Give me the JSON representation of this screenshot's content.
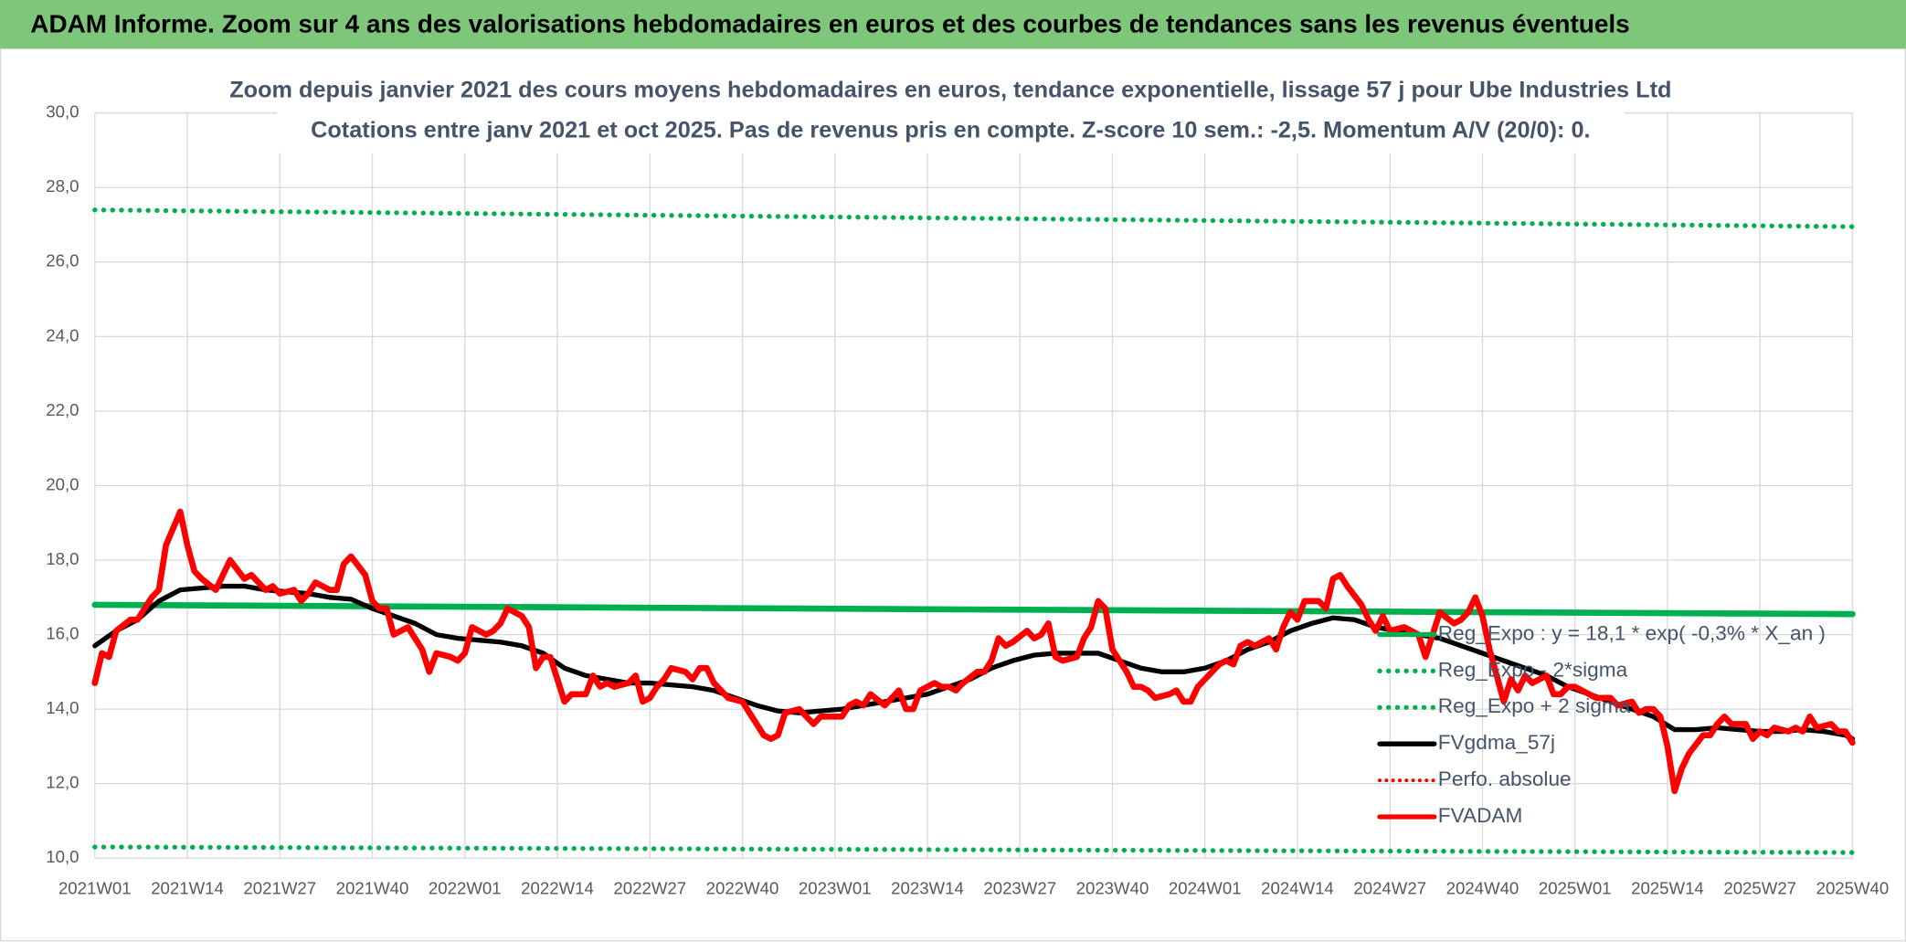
{
  "header": {
    "title": "ADAM Informe. Zoom sur 4 ans des valorisations hebdomadaires en euros et des courbes de tendances sans les revenus éventuels"
  },
  "chart_data": {
    "type": "line",
    "title": "Zoom depuis janvier 2021 des cours moyens hebdomadaires en euros, tendance exponentielle, lissage 57 j pour Ube Industries Ltd",
    "subtitle": "Cotations entre janv 2021 et oct 2025. Pas de revenus pris en compte. Z-score 10 sem.: -2,5. Momentum A/V (20/0): 0.",
    "xlim": [
      0,
      247
    ],
    "xticks": [
      {
        "value": 0,
        "label": "2021W01"
      },
      {
        "value": 13,
        "label": "2021W14"
      },
      {
        "value": 26,
        "label": "2021W27"
      },
      {
        "value": 39,
        "label": "2021W40"
      },
      {
        "value": 52,
        "label": "2022W01"
      },
      {
        "value": 65,
        "label": "2022W14"
      },
      {
        "value": 78,
        "label": "2022W27"
      },
      {
        "value": 91,
        "label": "2022W40"
      },
      {
        "value": 104,
        "label": "2023W01"
      },
      {
        "value": 117,
        "label": "2023W14"
      },
      {
        "value": 130,
        "label": "2023W27"
      },
      {
        "value": 143,
        "label": "2023W40"
      },
      {
        "value": 156,
        "label": "2024W01"
      },
      {
        "value": 169,
        "label": "2024W14"
      },
      {
        "value": 182,
        "label": "2024W27"
      },
      {
        "value": 195,
        "label": "2024W40"
      },
      {
        "value": 208,
        "label": "2025W01"
      },
      {
        "value": 221,
        "label": "2025W14"
      },
      {
        "value": 234,
        "label": "2025W27"
      },
      {
        "value": 247,
        "label": "2025W40"
      }
    ],
    "ylim": [
      10,
      30
    ],
    "yticks": [
      {
        "value": 10,
        "label": "10,0"
      },
      {
        "value": 12,
        "label": "12,0"
      },
      {
        "value": 14,
        "label": "14,0"
      },
      {
        "value": 16,
        "label": "16,0"
      },
      {
        "value": 18,
        "label": "18,0"
      },
      {
        "value": 20,
        "label": "20,0"
      },
      {
        "value": 22,
        "label": "22,0"
      },
      {
        "value": 24,
        "label": "24,0"
      },
      {
        "value": 26,
        "label": "26,0"
      },
      {
        "value": 28,
        "label": "28,0"
      },
      {
        "value": 30,
        "label": "30,0"
      }
    ],
    "grid": true,
    "legend": "lower right",
    "series": [
      {
        "name": "Reg_Expo : y = 18,1 * exp( -0,3% *  X_an )",
        "color": "#00b050",
        "style": "solid",
        "width": 5,
        "x": [
          0,
          247
        ],
        "values": [
          16.8,
          16.55
        ]
      },
      {
        "name": "Reg_Expo - 2*sigma",
        "color": "#00b050",
        "style": "dotted",
        "width": 4,
        "x": [
          0,
          247
        ],
        "values": [
          10.3,
          10.15
        ]
      },
      {
        "name": "Reg_Expo + 2 sigma",
        "color": "#00b050",
        "style": "dotted",
        "width": 4,
        "x": [
          0,
          247
        ],
        "values": [
          27.4,
          26.95
        ]
      },
      {
        "name": "FVgdma_57j",
        "color": "#000000",
        "style": "solid",
        "width": 4,
        "x": [
          0,
          3,
          6,
          9,
          12,
          15,
          18,
          21,
          24,
          27,
          30,
          33,
          36,
          39,
          42,
          45,
          48,
          51,
          54,
          57,
          60,
          63,
          66,
          69,
          72,
          75,
          78,
          81,
          84,
          87,
          90,
          93,
          96,
          99,
          102,
          105,
          108,
          111,
          114,
          117,
          120,
          123,
          126,
          129,
          132,
          135,
          138,
          141,
          144,
          147,
          150,
          153,
          156,
          159,
          162,
          165,
          168,
          171,
          174,
          177,
          180,
          183,
          186,
          189,
          192,
          195,
          198,
          201,
          204,
          207,
          210,
          213,
          216,
          219,
          222,
          225,
          228,
          231,
          234,
          237,
          240,
          243,
          246,
          247
        ],
        "values": [
          15.7,
          16.1,
          16.4,
          16.9,
          17.2,
          17.25,
          17.3,
          17.3,
          17.2,
          17.15,
          17.1,
          17.0,
          16.95,
          16.7,
          16.5,
          16.3,
          16.0,
          15.9,
          15.85,
          15.8,
          15.7,
          15.5,
          15.1,
          14.9,
          14.8,
          14.7,
          14.7,
          14.65,
          14.6,
          14.5,
          14.3,
          14.1,
          13.95,
          13.9,
          13.95,
          14.0,
          14.1,
          14.2,
          14.3,
          14.4,
          14.6,
          14.8,
          15.1,
          15.3,
          15.45,
          15.5,
          15.5,
          15.5,
          15.3,
          15.1,
          15.0,
          15.0,
          15.1,
          15.3,
          15.6,
          15.8,
          16.1,
          16.3,
          16.45,
          16.4,
          16.2,
          16.1,
          16.0,
          15.9,
          15.7,
          15.5,
          15.3,
          15.1,
          14.9,
          14.6,
          14.4,
          14.2,
          14.0,
          13.8,
          13.45,
          13.45,
          13.5,
          13.45,
          13.4,
          13.4,
          13.45,
          13.4,
          13.3,
          13.2
        ]
      },
      {
        "name": "Perfo. absolue",
        "color": "#ff0000",
        "style": "dotted",
        "width": 3,
        "x": [],
        "values": []
      },
      {
        "name": "FVADAM",
        "color": "#ff0000",
        "style": "solid",
        "width": 5,
        "x": [
          0,
          1,
          2,
          3,
          5,
          6,
          8,
          9,
          10,
          12,
          13,
          14,
          15,
          17,
          18,
          19,
          21,
          22,
          24,
          25,
          26,
          28,
          29,
          30,
          31,
          33,
          34,
          35,
          36,
          38,
          39,
          40,
          41,
          42,
          44,
          45,
          46,
          47,
          48,
          50,
          51,
          52,
          53,
          55,
          56,
          57,
          58,
          60,
          61,
          62,
          63,
          64,
          65,
          66,
          67,
          69,
          70,
          71,
          72,
          73,
          75,
          76,
          77,
          78,
          79,
          80,
          81,
          83,
          84,
          85,
          86,
          87,
          88,
          89,
          91,
          92,
          93,
          94,
          95,
          96,
          97,
          99,
          100,
          101,
          102,
          103,
          105,
          106,
          107,
          108,
          109,
          111,
          112,
          113,
          114,
          115,
          116,
          118,
          119,
          120,
          121,
          122,
          124,
          125,
          126,
          127,
          128,
          129,
          131,
          132,
          133,
          134,
          135,
          136,
          138,
          139,
          140,
          141,
          142,
          143,
          145,
          146,
          147,
          148,
          149,
          151,
          152,
          153,
          154,
          155,
          156,
          158,
          159,
          160,
          161,
          162,
          163,
          165,
          166,
          167,
          168,
          169,
          170,
          172,
          173,
          174,
          175,
          176,
          178,
          179,
          180,
          181,
          182,
          184,
          185,
          186,
          187,
          188,
          189,
          191,
          192,
          193,
          194,
          195,
          196,
          198,
          199,
          200,
          201,
          202,
          204,
          205,
          206,
          207,
          208,
          210,
          211,
          212,
          213,
          214,
          216,
          217,
          218,
          219,
          220,
          221,
          222,
          223,
          224,
          226,
          227,
          228,
          229,
          230,
          232,
          233,
          234,
          235,
          236,
          238,
          239,
          240,
          241,
          242,
          244,
          245,
          246,
          247
        ],
        "values": [
          14.7,
          15.5,
          15.4,
          16.1,
          16.4,
          16.4,
          17.0,
          17.2,
          18.4,
          19.3,
          18.4,
          17.7,
          17.5,
          17.2,
          17.6,
          18.0,
          17.5,
          17.6,
          17.2,
          17.3,
          17.1,
          17.2,
          16.9,
          17.1,
          17.4,
          17.2,
          17.2,
          17.9,
          18.1,
          17.6,
          16.9,
          16.7,
          16.7,
          16.0,
          16.2,
          15.9,
          15.6,
          15.0,
          15.5,
          15.4,
          15.3,
          15.5,
          16.2,
          16.0,
          16.1,
          16.3,
          16.7,
          16.5,
          16.2,
          15.1,
          15.4,
          15.4,
          14.8,
          14.2,
          14.4,
          14.4,
          14.9,
          14.6,
          14.7,
          14.6,
          14.7,
          14.9,
          14.2,
          14.3,
          14.6,
          14.8,
          15.1,
          15.0,
          14.8,
          15.1,
          15.1,
          14.7,
          14.5,
          14.3,
          14.2,
          13.9,
          13.6,
          13.3,
          13.2,
          13.3,
          13.9,
          14.0,
          13.8,
          13.6,
          13.8,
          13.8,
          13.8,
          14.1,
          14.2,
          14.1,
          14.4,
          14.1,
          14.3,
          14.5,
          14.0,
          14.0,
          14.5,
          14.7,
          14.6,
          14.6,
          14.5,
          14.7,
          15.0,
          15.0,
          15.3,
          15.9,
          15.7,
          15.8,
          16.1,
          15.9,
          16.0,
          16.3,
          15.4,
          15.3,
          15.4,
          15.9,
          16.2,
          16.9,
          16.7,
          15.6,
          15.0,
          14.6,
          14.6,
          14.5,
          14.3,
          14.4,
          14.5,
          14.2,
          14.2,
          14.6,
          14.8,
          15.2,
          15.3,
          15.2,
          15.7,
          15.8,
          15.7,
          15.9,
          15.6,
          16.2,
          16.6,
          16.4,
          16.9,
          16.9,
          16.7,
          17.5,
          17.6,
          17.3,
          16.8,
          16.4,
          16.1,
          16.5,
          16.1,
          16.2,
          16.1,
          16.0,
          15.4,
          16.0,
          16.6,
          16.3,
          16.4,
          16.6,
          17.0,
          16.5,
          15.6,
          14.2,
          14.8,
          14.5,
          14.9,
          14.7,
          14.9,
          14.4,
          14.4,
          14.6,
          14.6,
          14.4,
          14.3,
          14.3,
          14.3,
          14.1,
          14.2,
          13.9,
          14.0,
          14.0,
          13.8,
          13.0,
          11.8,
          12.4,
          12.8,
          13.3,
          13.3,
          13.6,
          13.8,
          13.6,
          13.6,
          13.2,
          13.4,
          13.3,
          13.5,
          13.4,
          13.5,
          13.4,
          13.8,
          13.5,
          13.6,
          13.4,
          13.4,
          13.1
        ]
      }
    ]
  }
}
